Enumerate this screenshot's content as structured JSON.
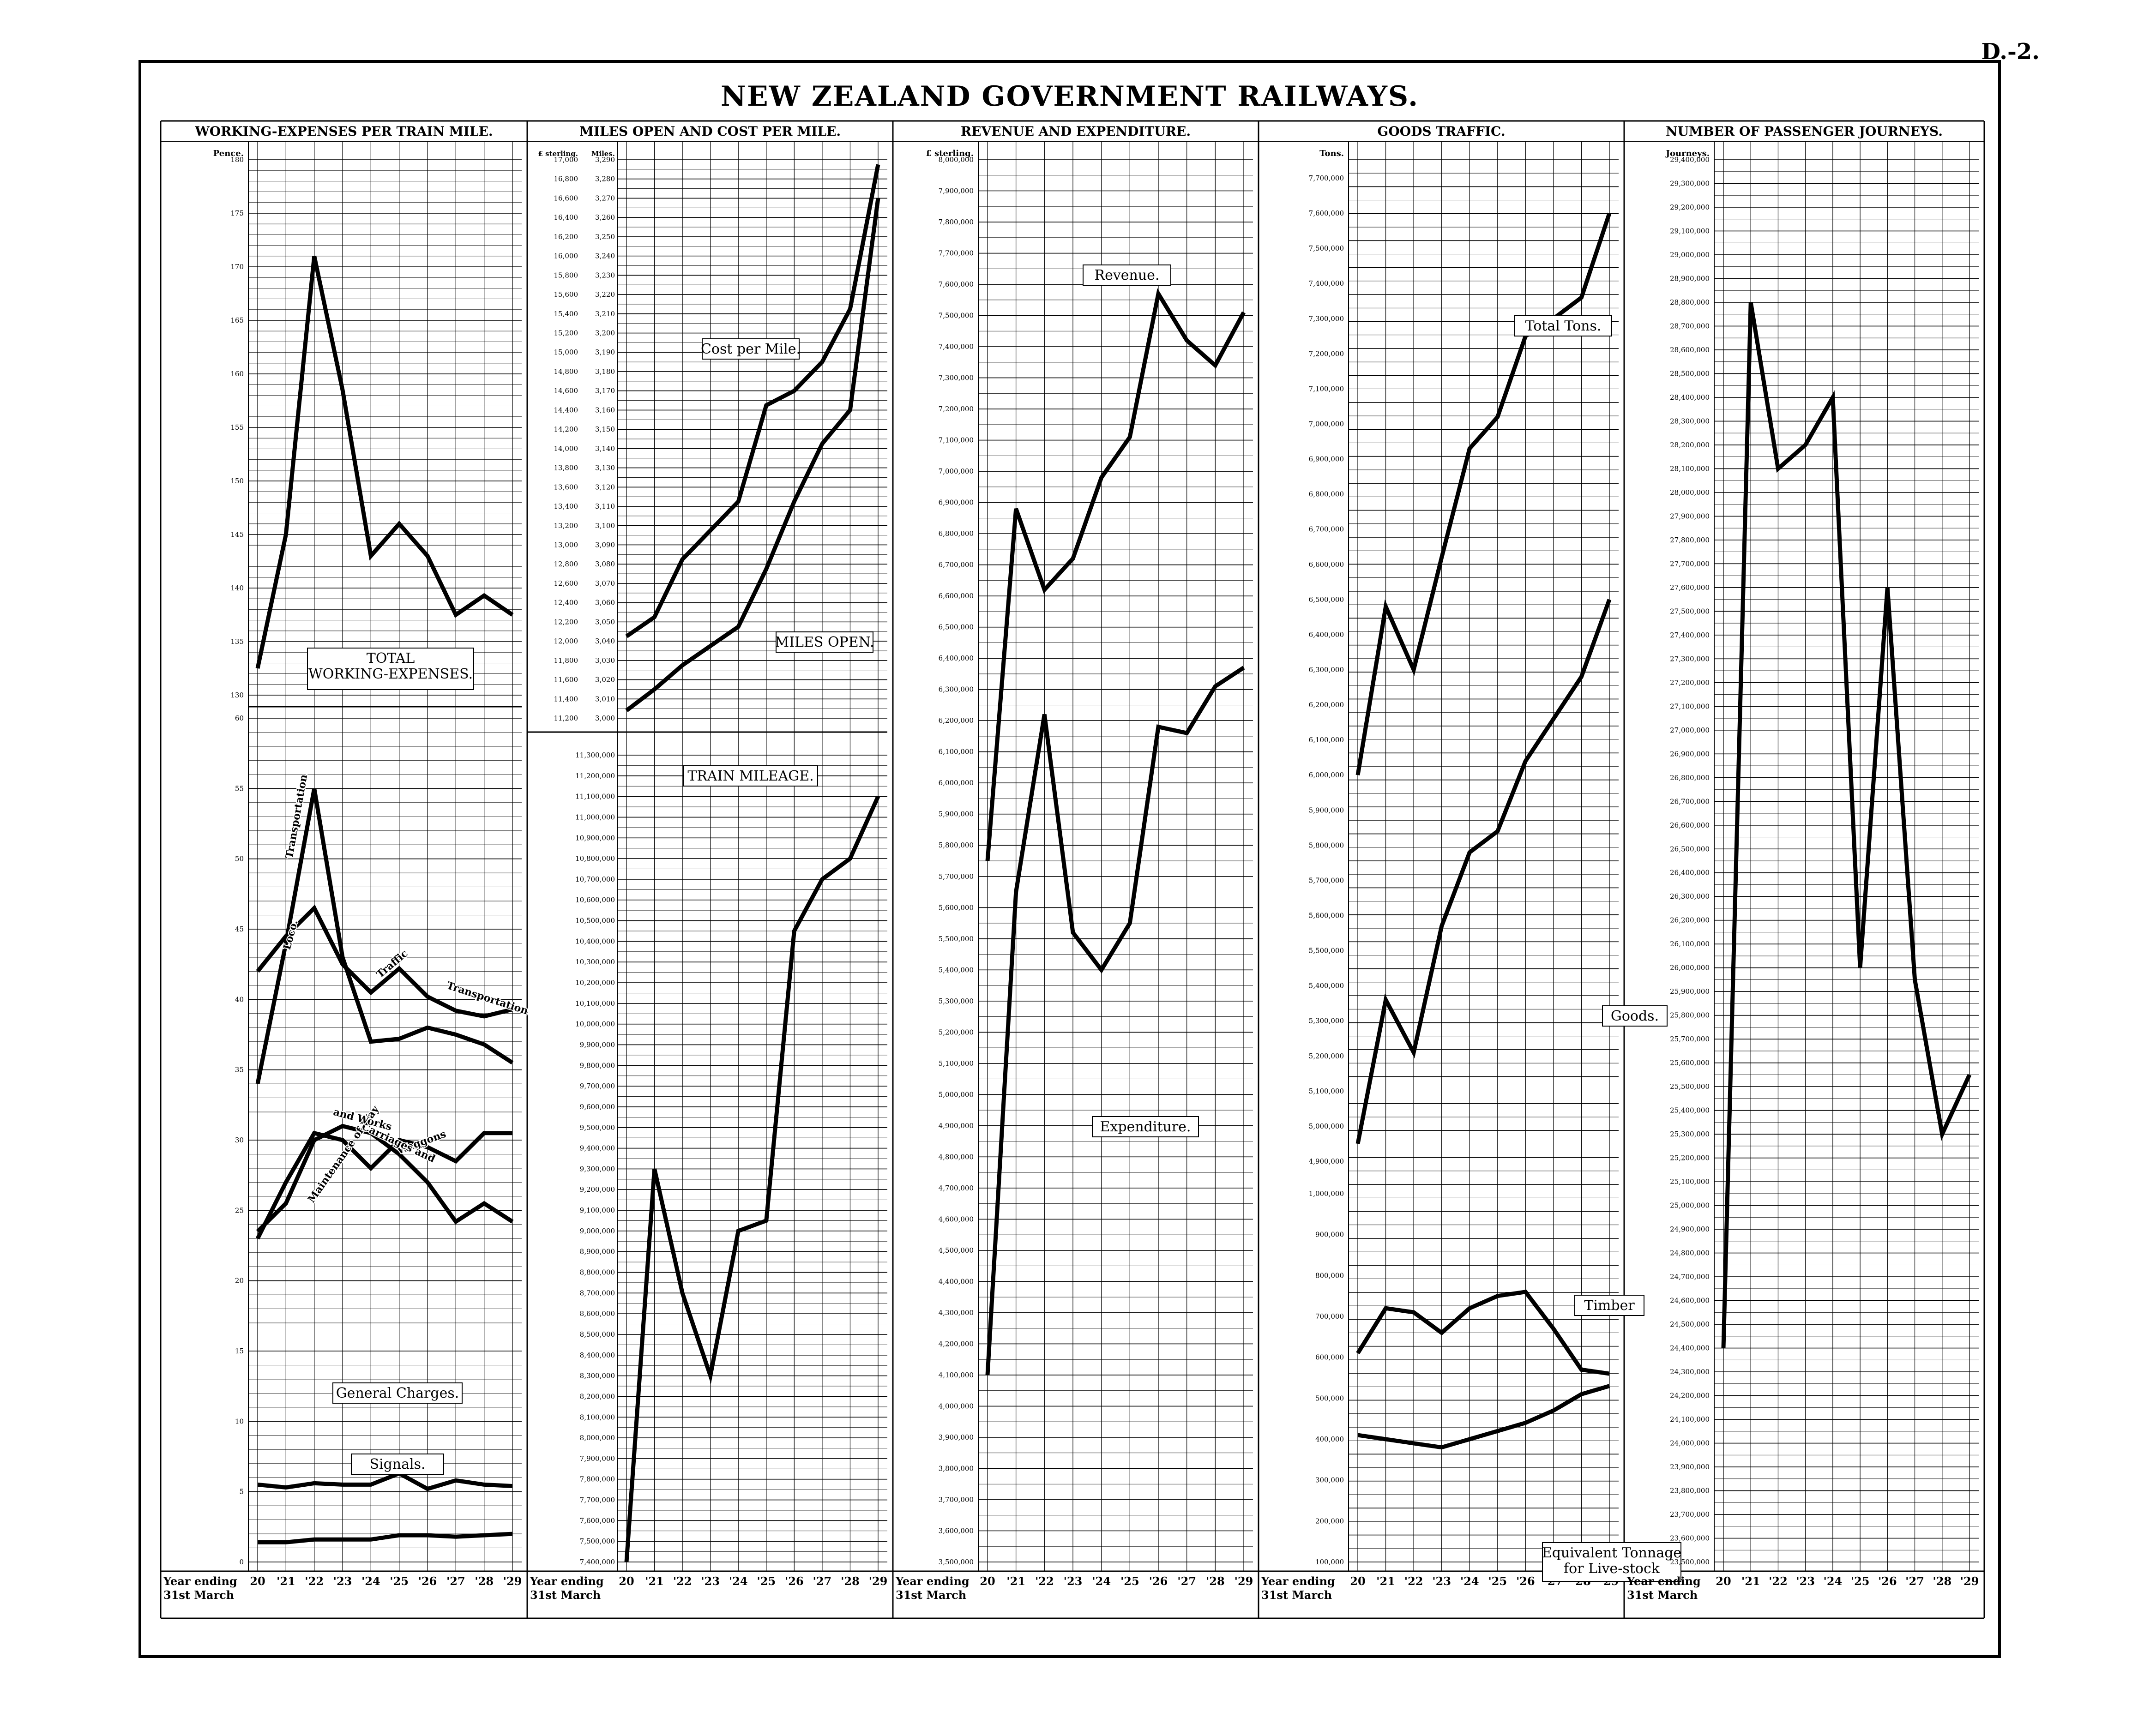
{
  "page_number": "D.-2.",
  "title": "NEW ZEALAND GOVERNMENT RAILWAYS.",
  "footer": {
    "line1": "Year ending",
    "line2": "31st March"
  },
  "years": [
    "20",
    "'21",
    "'22",
    "'23",
    "'24",
    "'25",
    "'26",
    "'27",
    "'28",
    "'29"
  ],
  "chart_data": [
    {
      "type": "line",
      "title": "WORKING-EXPENSES PER TRAIN MILE.",
      "unit_label": "Pence.",
      "x": [
        "20",
        "'21",
        "'22",
        "'23",
        "'24",
        "'25",
        "'26",
        "'27",
        "'28",
        "'29"
      ],
      "panels": [
        {
          "ylim": [
            130,
            180
          ],
          "ticks": [
            130,
            135,
            140,
            145,
            150,
            155,
            160,
            165,
            170,
            175,
            180
          ],
          "series": [
            {
              "name": "TOTAL WORKING-EXPENSES.",
              "values": [
                132.5,
                145.0,
                171.0,
                158.5,
                143.0,
                146.0,
                143.0,
                137.5,
                139.3,
                137.5
              ]
            }
          ]
        },
        {
          "ylim": [
            0,
            60
          ],
          "ticks": [
            0,
            5,
            10,
            15,
            20,
            25,
            30,
            35,
            40,
            45,
            50,
            55,
            60
          ],
          "series": [
            {
              "name": "Transportation",
              "values": [
                34.0,
                44.0,
                55.0,
                43.0,
                37.0,
                37.2,
                38.0,
                37.5,
                36.8,
                35.5
              ]
            },
            {
              "name": "Loco. Traffic Transportation",
              "values": [
                42.0,
                44.5,
                46.5,
                42.5,
                40.5,
                42.2,
                40.2,
                39.2,
                38.8,
                39.3
              ]
            },
            {
              "name": "Waggon Carriages and Waggons",
              "values": [
                23.0,
                27.0,
                30.5,
                30.0,
                28.0,
                30.0,
                29.5,
                28.5,
                30.5,
                30.5
              ]
            },
            {
              "name": "Maintenance of Way and Works",
              "values": [
                23.5,
                25.5,
                30.0,
                31.0,
                30.5,
                29.0,
                27.0,
                24.2,
                25.5,
                24.2
              ]
            },
            {
              "name": "General Charges.",
              "values": [
                5.5,
                5.3,
                5.6,
                5.5,
                5.5,
                6.3,
                5.2,
                5.8,
                5.5,
                5.4
              ]
            },
            {
              "name": "Signals.",
              "values": [
                1.4,
                1.4,
                1.6,
                1.6,
                1.6,
                1.9,
                1.9,
                1.8,
                1.9,
                2.0
              ]
            }
          ]
        }
      ]
    },
    {
      "type": "line",
      "title": "MILES OPEN AND COST PER MILE.",
      "unit_label_left": "£ sterling.",
      "unit_label_right": "Miles.",
      "x": [
        "20",
        "'21",
        "'22",
        "'23",
        "'24",
        "'25",
        "'26",
        "'27",
        "'28",
        "'29"
      ],
      "panels": [
        {
          "ylim": [
            11200,
            17000
          ],
          "ticks_left": [
            "11,200",
            "11,400",
            "11,600",
            "11,800",
            "12,000",
            "12,200",
            "12,400",
            "12,600",
            "12,800",
            "13,000",
            "13,200",
            "13,400",
            "13,600",
            "13,800",
            "14,000",
            "14,200",
            "14,400",
            "14,600",
            "14,800",
            "15,000",
            "15,200",
            "15,400",
            "15,600",
            "15,800",
            "16,000",
            "16,200",
            "16,400",
            "16,600",
            "16,800",
            "17,000"
          ],
          "ticks_right": [
            "3,000",
            "3,010",
            "3,020",
            "3,030",
            "3,040",
            "3,050",
            "3,060",
            "3,070",
            "3,080",
            "3,090",
            "3,100",
            "3,110",
            "3,120",
            "3,130",
            "3,140",
            "3,150",
            "3,160",
            "3,170",
            "3,180",
            "3,190",
            "3,200",
            "3,210",
            "3,220",
            "3,230",
            "3,240",
            "3,250",
            "3,260",
            "3,270",
            "3,280",
            "3,290"
          ],
          "series": [
            {
              "name": "Cost per Mile.",
              "values": [
                12050,
                12250,
                12850,
                13150,
                13450,
                14450,
                14600,
                14900,
                15450,
                16950
              ]
            },
            {
              "name": "MILES OPEN.",
              "values": [
                11280,
                11500,
                11750,
                11950,
                12150,
                12750,
                13450,
                14050,
                14400,
                16600
              ]
            }
          ]
        },
        {
          "title": "TRAIN MILEAGE.",
          "ylim": [
            7400000,
            11300000
          ],
          "ticks": [
            "7,400,000",
            "7,500,000",
            "7,600,000",
            "7,700,000",
            "7,800,000",
            "7,900,000",
            "8,000,000",
            "8,100,000",
            "8,200,000",
            "8,300,000",
            "8,400,000",
            "8,500,000",
            "8,600,000",
            "8,700,000",
            "8,800,000",
            "8,900,000",
            "9,000,000",
            "9,100,000",
            "9,200,000",
            "9,300,000",
            "9,400,000",
            "9,500,000",
            "9,600,000",
            "9,700,000",
            "9,800,000",
            "9,900,000",
            "10,000,000",
            "10,100,000",
            "10,200,000",
            "10,300,000",
            "10,400,000",
            "10,500,000",
            "10,600,000",
            "10,700,000",
            "10,800,000",
            "10,900,000",
            "11,000,000",
            "11,100,000",
            "11,200,000",
            "11,300,000"
          ],
          "series": [
            {
              "name": "TRAIN MILEAGE.",
              "values": [
                7400000,
                9300000,
                8700000,
                8300000,
                9000000,
                9050000,
                10450000,
                10700000,
                10800000,
                11100000
              ]
            }
          ]
        }
      ]
    },
    {
      "type": "line",
      "title": "REVENUE AND EXPENDITURE.",
      "unit_label": "£ sterling.",
      "x": [
        "20",
        "'21",
        "'22",
        "'23",
        "'24",
        "'25",
        "'26",
        "'27",
        "'28",
        "'29"
      ],
      "ylim": [
        3500000,
        8000000
      ],
      "ticks": [
        "3,500,000",
        "3,600,000",
        "3,700,000",
        "3,800,000",
        "3,900,000",
        "4,000,000",
        "4,100,000",
        "4,200,000",
        "4,300,000",
        "4,400,000",
        "4,500,000",
        "4,600,000",
        "4,700,000",
        "4,800,000",
        "4,900,000",
        "5,000,000",
        "5,100,000",
        "5,200,000",
        "5,300,000",
        "5,400,000",
        "5,500,000",
        "5,600,000",
        "5,700,000",
        "5,800,000",
        "5,900,000",
        "6,000,000",
        "6,100,000",
        "6,200,000",
        "6,300,000",
        "6,400,000",
        "6,500,000",
        "6,600,000",
        "6,700,000",
        "6,800,000",
        "6,900,000",
        "7,000,000",
        "7,100,000",
        "7,200,000",
        "7,300,000",
        "7,400,000",
        "7,500,000",
        "7,600,000",
        "7,700,000",
        "7,800,000",
        "7,900,000",
        "8,000,000"
      ],
      "series": [
        {
          "name": "Revenue.",
          "values": [
            5750000,
            6880000,
            6620000,
            6720000,
            6980000,
            7110000,
            7570000,
            7420000,
            7340000,
            7510000
          ]
        },
        {
          "name": "Expenditure.",
          "values": [
            4100000,
            5650000,
            6220000,
            5520000,
            5400000,
            5550000,
            6180000,
            6160000,
            6310000,
            6370000
          ]
        }
      ]
    },
    {
      "type": "line",
      "title": "GOODS TRAFFIC.",
      "unit_label": "Tons.",
      "x": [
        "20",
        "'21",
        "'22",
        "'23",
        "'24",
        "'25",
        "'26",
        "'27",
        "'28",
        "'29"
      ],
      "ylim": [
        100000,
        7800000
      ],
      "ticks": [
        "100,000",
        "200,000",
        "300,000",
        "400,000",
        "500,000",
        "600,000",
        "700,000",
        "800,000",
        "900,000",
        "1,000,000",
        "4,900,000",
        "5,000,000",
        "5,100,000",
        "5,200,000",
        "5,300,000",
        "5,400,000",
        "5,500,000",
        "5,600,000",
        "5,700,000",
        "5,800,000",
        "5,900,000",
        "6,000,000",
        "6,100,000",
        "6,200,000",
        "6,300,000",
        "6,400,000",
        "6,500,000",
        "6,600,000",
        "6,700,000",
        "6,800,000",
        "6,900,000",
        "7,000,000",
        "7,100,000",
        "7,200,000",
        "7,300,000",
        "7,400,000",
        "7,500,000",
        "7,600,000",
        "7,700,000"
      ],
      "series": [
        {
          "name": "Total Tons.",
          "values": [
            6000000,
            6480000,
            6300000,
            6620000,
            6930000,
            7020000,
            7250000,
            7300000,
            7360000,
            7600000
          ]
        },
        {
          "name": "Goods.",
          "values": [
            4950000,
            5360000,
            5210000,
            5570000,
            5780000,
            5840000,
            6040000,
            6160000,
            6280000,
            6500000
          ]
        },
        {
          "name": "Timber",
          "values": [
            610000,
            720000,
            710000,
            660000,
            720000,
            750000,
            760000,
            670000,
            570000,
            560000
          ]
        },
        {
          "name": "Equivalent Tonnage for Live-stock",
          "values": [
            410000,
            400000,
            390000,
            380000,
            400000,
            420000,
            440000,
            470000,
            510000,
            530000
          ]
        }
      ]
    },
    {
      "type": "line",
      "title": "NUMBER OF PASSENGER JOURNEYS.",
      "unit_label": "Journeys.",
      "x": [
        "20",
        "'21",
        "'22",
        "'23",
        "'24",
        "'25",
        "'26",
        "'27",
        "'28",
        "'29"
      ],
      "ylim": [
        23500000,
        29400000
      ],
      "ticks": [
        "23,500,000",
        "23,600,000",
        "23,700,000",
        "23,800,000",
        "23,900,000",
        "24,000,000",
        "24,100,000",
        "24,200,000",
        "24,300,000",
        "24,400,000",
        "24,500,000",
        "24,600,000",
        "24,700,000",
        "24,800,000",
        "24,900,000",
        "25,000,000",
        "25,100,000",
        "25,200,000",
        "25,300,000",
        "25,400,000",
        "25,500,000",
        "25,600,000",
        "25,700,000",
        "25,800,000",
        "25,900,000",
        "26,000,000",
        "26,100,000",
        "26,200,000",
        "26,300,000",
        "26,400,000",
        "26,500,000",
        "26,600,000",
        "26,700,000",
        "26,800,000",
        "26,900,000",
        "27,000,000",
        "27,100,000",
        "27,200,000",
        "27,300,000",
        "27,400,000",
        "27,500,000",
        "27,600,000",
        "27,700,000",
        "27,800,000",
        "27,900,000",
        "28,000,000",
        "28,100,000",
        "28,200,000",
        "28,300,000",
        "28,400,000",
        "28,500,000",
        "28,600,000",
        "28,700,000",
        "28,800,000",
        "28,900,000",
        "29,000,000",
        "29,100,000",
        "29,200,000",
        "29,300,000",
        "29,400,000"
      ],
      "series": [
        {
          "name": "",
          "values": [
            24400000,
            28800000,
            28100000,
            28200000,
            28400000,
            26000000,
            27600000,
            25950000,
            25300000,
            25550000
          ]
        }
      ]
    }
  ]
}
